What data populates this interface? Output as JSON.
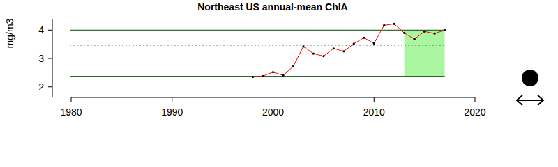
{
  "chart_data": {
    "type": "line",
    "title": "Northeast US annual-mean ChlA",
    "y_label": "mg/m3",
    "x": [
      1998,
      1999,
      2000,
      2001,
      2002,
      2003,
      2004,
      2005,
      2006,
      2007,
      2008,
      2009,
      2010,
      2011,
      2012,
      2013,
      2014,
      2015,
      2016,
      2017
    ],
    "values": [
      2.35,
      2.38,
      2.52,
      2.4,
      2.72,
      3.42,
      3.17,
      3.08,
      3.35,
      3.25,
      3.52,
      3.73,
      3.53,
      4.17,
      4.22,
      3.9,
      3.68,
      3.95,
      3.88,
      4.0
    ],
    "color": "#ff0000",
    "marker": "circle",
    "xlim": [
      1980,
      2020
    ],
    "xticks": [
      1980,
      1990,
      2000,
      2010,
      2020
    ],
    "ylim": [
      1.65,
      4.4
    ],
    "yticks": [
      2,
      3,
      4
    ],
    "reference_lines": {
      "upper": 4.0,
      "mean": 3.47,
      "lower": 2.37
    },
    "highlight": [
      2013,
      2017
    ]
  }
}
